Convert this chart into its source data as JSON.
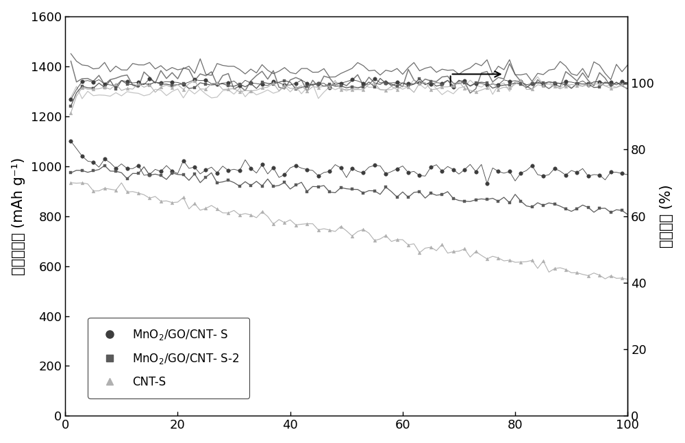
{
  "ylabel_left": "放电比容量 (mAh g⁻¹)",
  "ylabel_right": "库伦效率 (%)",
  "xlim": [
    0,
    100
  ],
  "ylim_left": [
    0,
    1600
  ],
  "ylim_right": [
    0,
    120
  ],
  "xticks": [
    0,
    20,
    40,
    60,
    80,
    100
  ],
  "yticks_left": [
    0,
    200,
    400,
    600,
    800,
    1000,
    1200,
    1400,
    1600
  ],
  "yticks_right": [
    0,
    20,
    40,
    60,
    80,
    100
  ],
  "background_color": "#ffffff",
  "fontsize_axis_label": 15,
  "fontsize_tick": 13,
  "dark_color": "#3d3d3d",
  "mid_color": "#5a5a5a",
  "light_color": "#b0b0b0"
}
